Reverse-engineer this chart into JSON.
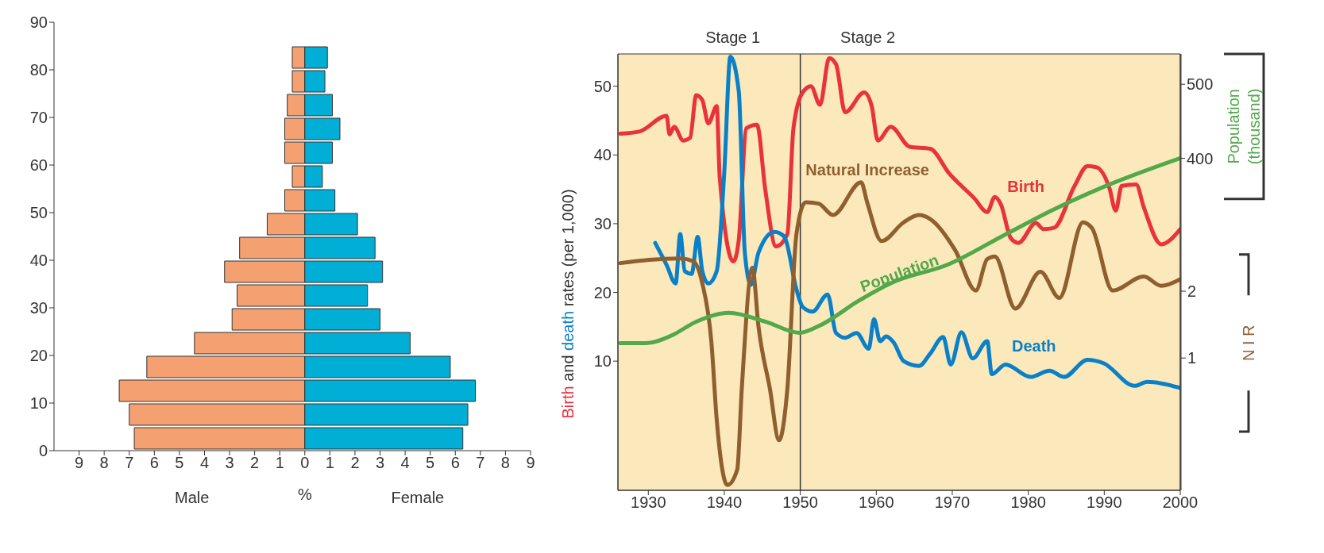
{
  "chart_data": [
    {
      "type": "bar",
      "orientation": "horizontal",
      "stacked": true,
      "x": [
        2.5,
        7.5,
        12.5,
        17.5,
        22.5,
        27.5,
        32.5,
        37.5,
        42.5,
        47.5,
        52.5,
        57.5,
        62.5,
        67.5,
        72.5,
        77.5,
        82.5
      ],
      "series": [
        {
          "color": "#f4a070",
          "values": [
            -6.8,
            -7.0,
            -7.4,
            -6.3,
            -4.4,
            -2.9,
            -2.7,
            -3.2,
            -2.6,
            -1.5,
            -0.8,
            -0.5,
            -0.8,
            -0.8,
            -0.7,
            -0.5,
            -0.5
          ]
        },
        {
          "color": "#00aed6",
          "values": [
            6.3,
            6.5,
            6.8,
            5.8,
            4.2,
            3.0,
            2.5,
            3.1,
            2.8,
            2.1,
            1.2,
            0.7,
            1.1,
            1.4,
            1.1,
            0.8,
            0.9
          ]
        }
      ],
      "xlim": [
        -10,
        9
      ],
      "xticks": [
        {
          "value": -9,
          "label": "9"
        },
        {
          "value": -8,
          "label": "8"
        },
        {
          "value": -7,
          "label": "7"
        },
        {
          "value": -6,
          "label": "6"
        },
        {
          "value": -5,
          "label": "5"
        },
        {
          "value": -4,
          "label": "4"
        },
        {
          "value": -3,
          "label": "3"
        },
        {
          "value": -2,
          "label": "2"
        },
        {
          "value": -1,
          "label": "1"
        },
        0,
        1,
        2,
        3,
        4,
        5,
        6,
        7,
        8,
        9
      ],
      "ylim": [
        0,
        90
      ],
      "yticks": [
        0,
        10,
        20,
        30,
        40,
        50,
        60,
        70,
        80,
        90
      ],
      "xlabel": "%",
      "annotations": [
        "Male",
        "Female"
      ]
    },
    {
      "type": "line",
      "xlim": [
        1926,
        2000
      ],
      "xticks": [
        1930,
        1940,
        1950,
        1960,
        1970,
        1980,
        1990,
        2000
      ],
      "ylim": [
        -8.8,
        54.7
      ],
      "yticks": [
        10,
        20,
        30,
        40,
        50
      ],
      "y2lim": [
        -49,
        541
      ],
      "y2ticks": [
        400,
        500
      ],
      "y3lim": [
        -0.98,
        5.55
      ],
      "y3ticks": [
        1,
        2
      ],
      "ylabel": "Birth and death rates (per 1,000)",
      "y2label": "Population (thousand)",
      "y3label": "N I R",
      "ref_lines": [
        {
          "axis": "x",
          "value": 1950,
          "color": "#333333"
        }
      ],
      "annotations": [
        "Stage 1",
        "Stage 2"
      ],
      "series": [
        {
          "name": "Birth",
          "color": "#e8333c",
          "x": [
            1926.3,
            1928.8,
            1932.4,
            1932.8,
            1933.4,
            1934.6,
            1935.5,
            1936.3,
            1937.1,
            1937.9,
            1939.0,
            1939.4,
            1941.2,
            1941.9,
            1942.9,
            1944.3,
            1945.4,
            1946.8,
            1948.3,
            1949.1,
            1950.3,
            1951.4,
            1952.6,
            1953.8,
            1954.7,
            1955.9,
            1958.4,
            1959.4,
            1960.2,
            1961.9,
            1964.4,
            1967.1,
            1969.6,
            1972.9,
            1974.6,
            1975.6,
            1976.4,
            1977.7,
            1978.7,
            1981.0,
            1982.0,
            1983.4,
            1986.1,
            1987.8,
            1989.0,
            1990.7,
            1991.5,
            1992.3,
            1994.2,
            1995.2,
            1997.5,
            2000
          ],
          "values": [
            43.1,
            43.4,
            45.7,
            43.0,
            44.1,
            42.1,
            42.5,
            48.7,
            48.0,
            44.6,
            47.1,
            36.7,
            24.5,
            27.6,
            43.9,
            44.4,
            34.9,
            26.7,
            28.5,
            43.9,
            49.1,
            50.0,
            47.3,
            54.1,
            53.2,
            46.2,
            49.1,
            47.1,
            42.1,
            44.1,
            41.2,
            40.9,
            37.3,
            33.7,
            31.7,
            33.9,
            32.8,
            27.9,
            27.2,
            30.1,
            29.2,
            29.4,
            35.5,
            38.4,
            38.2,
            35.1,
            31.9,
            35.5,
            35.7,
            32.4,
            27.0,
            29.2
          ]
        },
        {
          "name": "Death",
          "color": "#0a80c8",
          "x": [
            1930.9,
            1932.4,
            1933.6,
            1934.2,
            1934.8,
            1935.7,
            1936.5,
            1937.1,
            1937.9,
            1939.0,
            1940.0,
            1940.8,
            1941.9,
            1942.7,
            1943.5,
            1944.5,
            1946.6,
            1947.9,
            1949.5,
            1950.3,
            1951.6,
            1953.6,
            1954.7,
            1955.9,
            1957.4,
            1959.0,
            1959.7,
            1960.5,
            1961.3,
            1962.3,
            1963.6,
            1965.6,
            1967.1,
            1968.8,
            1969.8,
            1971.2,
            1972.7,
            1974.6,
            1975.2,
            1977.0,
            1980.3,
            1982.8,
            1984.7,
            1987.8,
            1989.9,
            1994.0,
            1995.7,
            2000
          ],
          "values": [
            27.2,
            24.0,
            21.3,
            28.5,
            23.1,
            22.7,
            28.1,
            23.1,
            21.3,
            23.1,
            37.6,
            54.3,
            49.3,
            25.8,
            21.1,
            25.8,
            28.8,
            28.1,
            20.4,
            17.9,
            17.2,
            19.7,
            14.1,
            13.4,
            14.1,
            11.8,
            16.1,
            12.9,
            13.6,
            12.7,
            10.0,
            9.3,
            11.1,
            13.5,
            9.5,
            14.2,
            10.4,
            12.9,
            8.1,
            9.5,
            7.7,
            8.6,
            7.7,
            10.2,
            9.7,
            6.4,
            7.0,
            6.1
          ]
        },
        {
          "name": "Natural Increase",
          "color": "#8f5f30",
          "axis": "y3",
          "x": [
            1926.3,
            1930.1,
            1934.2,
            1935.9,
            1937.1,
            1938.3,
            1939.0,
            1940.4,
            1941.7,
            1942.3,
            1943.7,
            1944.5,
            1946.0,
            1947.2,
            1948.3,
            1949.5,
            1950.7,
            1952.4,
            1954.3,
            1958.0,
            1958.8,
            1960.7,
            1963.6,
            1965.6,
            1967.1,
            1970.4,
            1973.1,
            1974.6,
            1975.6,
            1978.3,
            1981.6,
            1984.1,
            1987.2,
            1988.4,
            1991.1,
            1995.2,
            1997.5,
            2000
          ],
          "values": [
            2.42,
            2.47,
            2.49,
            2.45,
            2.12,
            1.24,
            0.08,
            -0.9,
            -0.67,
            0.54,
            2.35,
            1.47,
            0.54,
            -0.23,
            0.54,
            2.86,
            3.33,
            3.31,
            3.14,
            3.63,
            3.33,
            2.75,
            3.03,
            3.14,
            3.08,
            2.61,
            2.01,
            2.48,
            2.52,
            1.74,
            2.29,
            1.9,
            3.03,
            2.94,
            2.01,
            2.22,
            2.08,
            2.18
          ]
        },
        {
          "name": "Population",
          "color": "#52a84a",
          "axis": "y2",
          "x": [
            1926.3,
            1929.7,
            1933.0,
            1936.3,
            1940.6,
            1945.4,
            1949.9,
            1952.4,
            1957.8,
            1961.9,
            1969.6,
            1977.0,
            1983.2,
            1989.4,
            2000
          ],
          "values": [
            150,
            150,
            160,
            179,
            191,
            179,
            164,
            173,
            208,
            231,
            257,
            297,
            330,
            359,
            400
          ]
        }
      ]
    }
  ]
}
